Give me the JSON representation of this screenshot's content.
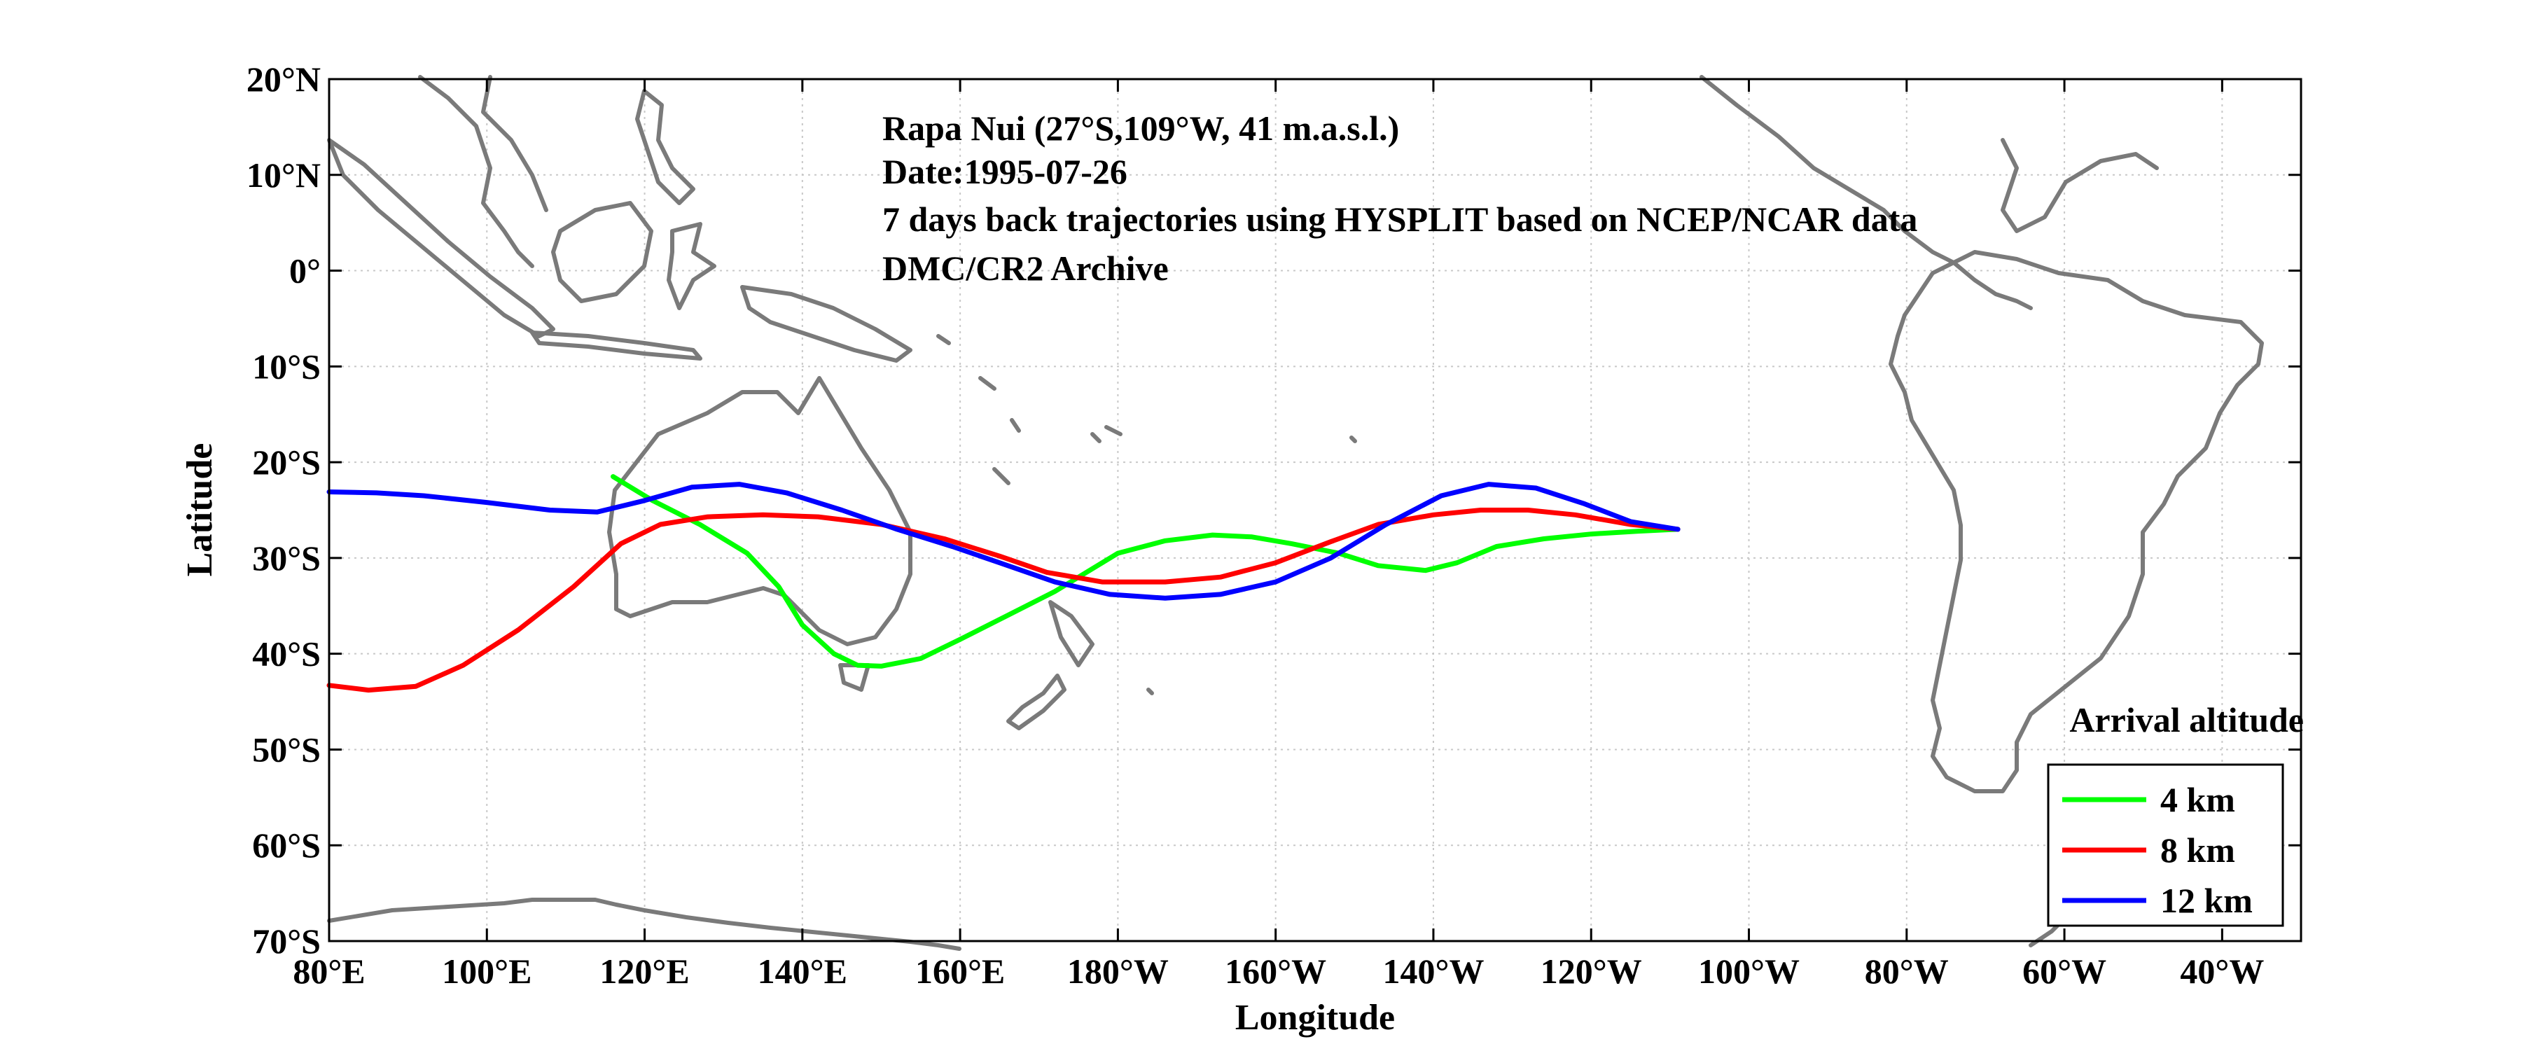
{
  "chart_data": {
    "type": "line",
    "annotations": [
      "Rapa Nui (27°S,109°W, 41 m.a.s.l.)",
      "Date:1995-07-26",
      "7 days back trajectories using HYSPLIT based on NCEP/NCAR data",
      "DMC/CR2 Archive"
    ],
    "xlabel": "Longitude",
    "ylabel": "Latitude",
    "xlim": [
      80,
      330
    ],
    "ylim": [
      -70,
      20
    ],
    "xticks": [
      {
        "v": 80,
        "label": "80°E"
      },
      {
        "v": 100,
        "label": "100°E"
      },
      {
        "v": 120,
        "label": "120°E"
      },
      {
        "v": 140,
        "label": "140°E"
      },
      {
        "v": 160,
        "label": "160°E"
      },
      {
        "v": 180,
        "label": "180°W"
      },
      {
        "v": 200,
        "label": "160°W"
      },
      {
        "v": 220,
        "label": "140°W"
      },
      {
        "v": 240,
        "label": "120°W"
      },
      {
        "v": 260,
        "label": "100°W"
      },
      {
        "v": 280,
        "label": "80°W"
      },
      {
        "v": 300,
        "label": "60°W"
      },
      {
        "v": 320,
        "label": "40°W"
      }
    ],
    "yticks": [
      {
        "v": 20,
        "label": "20°N"
      },
      {
        "v": 10,
        "label": "10°N"
      },
      {
        "v": 0,
        "label": "0°"
      },
      {
        "v": -10,
        "label": "10°S"
      },
      {
        "v": -20,
        "label": "20°S"
      },
      {
        "v": -30,
        "label": "30°S"
      },
      {
        "v": -40,
        "label": "40°S"
      },
      {
        "v": -50,
        "label": "50°S"
      },
      {
        "v": -60,
        "label": "60°S"
      },
      {
        "v": -70,
        "label": "70°S"
      }
    ],
    "grid": true,
    "legend": {
      "title": "Arrival altitude",
      "placement": "bottom-right"
    },
    "series": [
      {
        "name": "4 km",
        "color": "#00ff00",
        "lon": [
          251,
          246,
          240,
          234,
          228,
          223,
          219,
          213,
          208,
          202,
          197,
          192,
          186,
          180,
          177,
          172,
          166,
          160,
          155,
          150,
          147,
          144,
          140,
          137,
          133,
          127,
          121,
          116
        ],
        "lat": [
          -27,
          -27.2,
          -27.5,
          -28,
          -28.8,
          -30.5,
          -31.3,
          -30.8,
          -29.5,
          -28.5,
          -27.8,
          -27.6,
          -28.2,
          -29.5,
          -31,
          -33.5,
          -36,
          -38.5,
          -40.5,
          -41.3,
          -41.2,
          -40,
          -37,
          -33,
          -29.5,
          -26.5,
          -24,
          -21.5
        ]
      },
      {
        "name": "8 km",
        "color": "#ff0000",
        "lon": [
          251,
          245,
          238,
          232,
          226,
          220,
          213,
          207,
          200,
          193,
          186,
          178,
          171,
          165,
          158,
          150,
          142,
          135,
          128,
          122,
          117,
          111,
          104,
          97,
          91,
          85,
          80
        ],
        "lat": [
          -27,
          -26.5,
          -25.5,
          -25,
          -25,
          -25.5,
          -26.5,
          -28.3,
          -30.5,
          -32,
          -32.5,
          -32.5,
          -31.5,
          -29.8,
          -28,
          -26.5,
          -25.7,
          -25.5,
          -25.7,
          -26.5,
          -28.5,
          -33,
          -37.5,
          -41.2,
          -43.4,
          -43.8,
          -43.3
        ]
      },
      {
        "name": "12 km",
        "color": "#0000ff",
        "lon": [
          251,
          245,
          239,
          233,
          227,
          221,
          214,
          207,
          200,
          193,
          186,
          179,
          172,
          165,
          159,
          152,
          145,
          138,
          132,
          126,
          120,
          114,
          108,
          100,
          92,
          86,
          80
        ],
        "lat": [
          -27,
          -26.2,
          -24.3,
          -22.7,
          -22.3,
          -23.5,
          -26.5,
          -30,
          -32.5,
          -33.8,
          -34.2,
          -33.8,
          -32.5,
          -30.5,
          -28.8,
          -27,
          -25,
          -23.2,
          -22.3,
          -22.6,
          -24,
          -25.2,
          -25,
          -24.2,
          -23.5,
          -23.2,
          -23.1
        ]
      }
    ]
  }
}
